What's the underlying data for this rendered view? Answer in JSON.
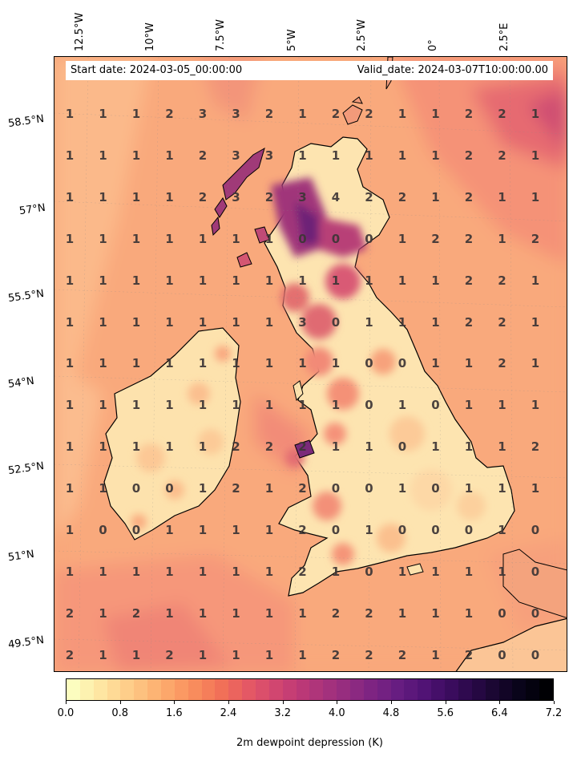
{
  "header": {
    "start_date": "Start date: 2024-03-05_00:00:00",
    "valid_date": "Valid_date: 2024-03-07T10:00:00.00"
  },
  "longitude_ticks": [
    "12.5°W",
    "10°W",
    "7.5°W",
    "5°W",
    "2.5°W",
    "0°",
    "2.5°E"
  ],
  "latitude_ticks": [
    "58.5°N",
    "57°N",
    "55.5°N",
    "54°N",
    "52.5°N",
    "51°N",
    "49.5°N"
  ],
  "colorbar": {
    "label": "2m dewpoint depression (K)",
    "ticks": [
      "0.0",
      "0.8",
      "1.6",
      "2.4",
      "3.2",
      "4.0",
      "4.8",
      "5.6",
      "6.4",
      "7.2"
    ],
    "min": 0.0,
    "max": 7.2,
    "colormap": "magma_r"
  },
  "grid_values": [
    [
      "1",
      "1",
      "1",
      "2",
      "3",
      "3",
      "2",
      "1",
      "2",
      "2",
      "1",
      "1",
      "2",
      "2",
      "1"
    ],
    [
      "1",
      "1",
      "1",
      "1",
      "2",
      "3",
      "3",
      "1",
      "1",
      "1",
      "1",
      "1",
      "2",
      "2",
      "1"
    ],
    [
      "1",
      "1",
      "1",
      "1",
      "2",
      "3",
      "2",
      "3",
      "4",
      "2",
      "2",
      "1",
      "2",
      "1",
      "1"
    ],
    [
      "1",
      "1",
      "1",
      "1",
      "1",
      "1",
      "1",
      "0",
      "0",
      "0",
      "1",
      "2",
      "2",
      "1",
      "2"
    ],
    [
      "1",
      "1",
      "1",
      "1",
      "1",
      "1",
      "1",
      "1",
      "1",
      "1",
      "1",
      "1",
      "2",
      "2",
      "1"
    ],
    [
      "1",
      "1",
      "1",
      "1",
      "1",
      "1",
      "1",
      "3",
      "0",
      "1",
      "1",
      "1",
      "2",
      "2",
      "1"
    ],
    [
      "1",
      "1",
      "1",
      "1",
      "1",
      "1",
      "1",
      "1",
      "1",
      "0",
      "0",
      "1",
      "1",
      "2",
      "1"
    ],
    [
      "1",
      "1",
      "1",
      "1",
      "1",
      "1",
      "1",
      "1",
      "1",
      "0",
      "1",
      "0",
      "1",
      "1",
      "1"
    ],
    [
      "1",
      "1",
      "1",
      "1",
      "1",
      "2",
      "2",
      "2",
      "1",
      "1",
      "0",
      "1",
      "1",
      "1",
      "2"
    ],
    [
      "1",
      "1",
      "0",
      "0",
      "1",
      "2",
      "1",
      "2",
      "0",
      "0",
      "1",
      "0",
      "1",
      "1",
      "1"
    ],
    [
      "1",
      "0",
      "0",
      "1",
      "1",
      "1",
      "1",
      "2",
      "0",
      "1",
      "0",
      "0",
      "0",
      "1",
      "0"
    ],
    [
      "1",
      "1",
      "1",
      "1",
      "1",
      "1",
      "1",
      "2",
      "1",
      "0",
      "1",
      "1",
      "1",
      "1",
      "0"
    ],
    [
      "2",
      "1",
      "2",
      "1",
      "1",
      "1",
      "1",
      "1",
      "2",
      "2",
      "1",
      "1",
      "1",
      "0",
      "0"
    ],
    [
      "2",
      "1",
      "1",
      "2",
      "1",
      "1",
      "1",
      "1",
      "2",
      "2",
      "2",
      "1",
      "2",
      "0",
      "0"
    ]
  ],
  "chart_data": {
    "type": "heatmap",
    "title": "",
    "xlabel": "",
    "ylabel": "",
    "colorbar_label": "2m dewpoint depression (K)",
    "value_range": [
      0.0,
      7.2
    ],
    "x_ticks": [
      "12.5°W",
      "10°W",
      "7.5°W",
      "5°W",
      "2.5°W",
      "0°",
      "2.5°E"
    ],
    "y_ticks": [
      "58.5°N",
      "57°N",
      "55.5°N",
      "54°N",
      "52.5°N",
      "51°N",
      "49.5°N"
    ]
  }
}
